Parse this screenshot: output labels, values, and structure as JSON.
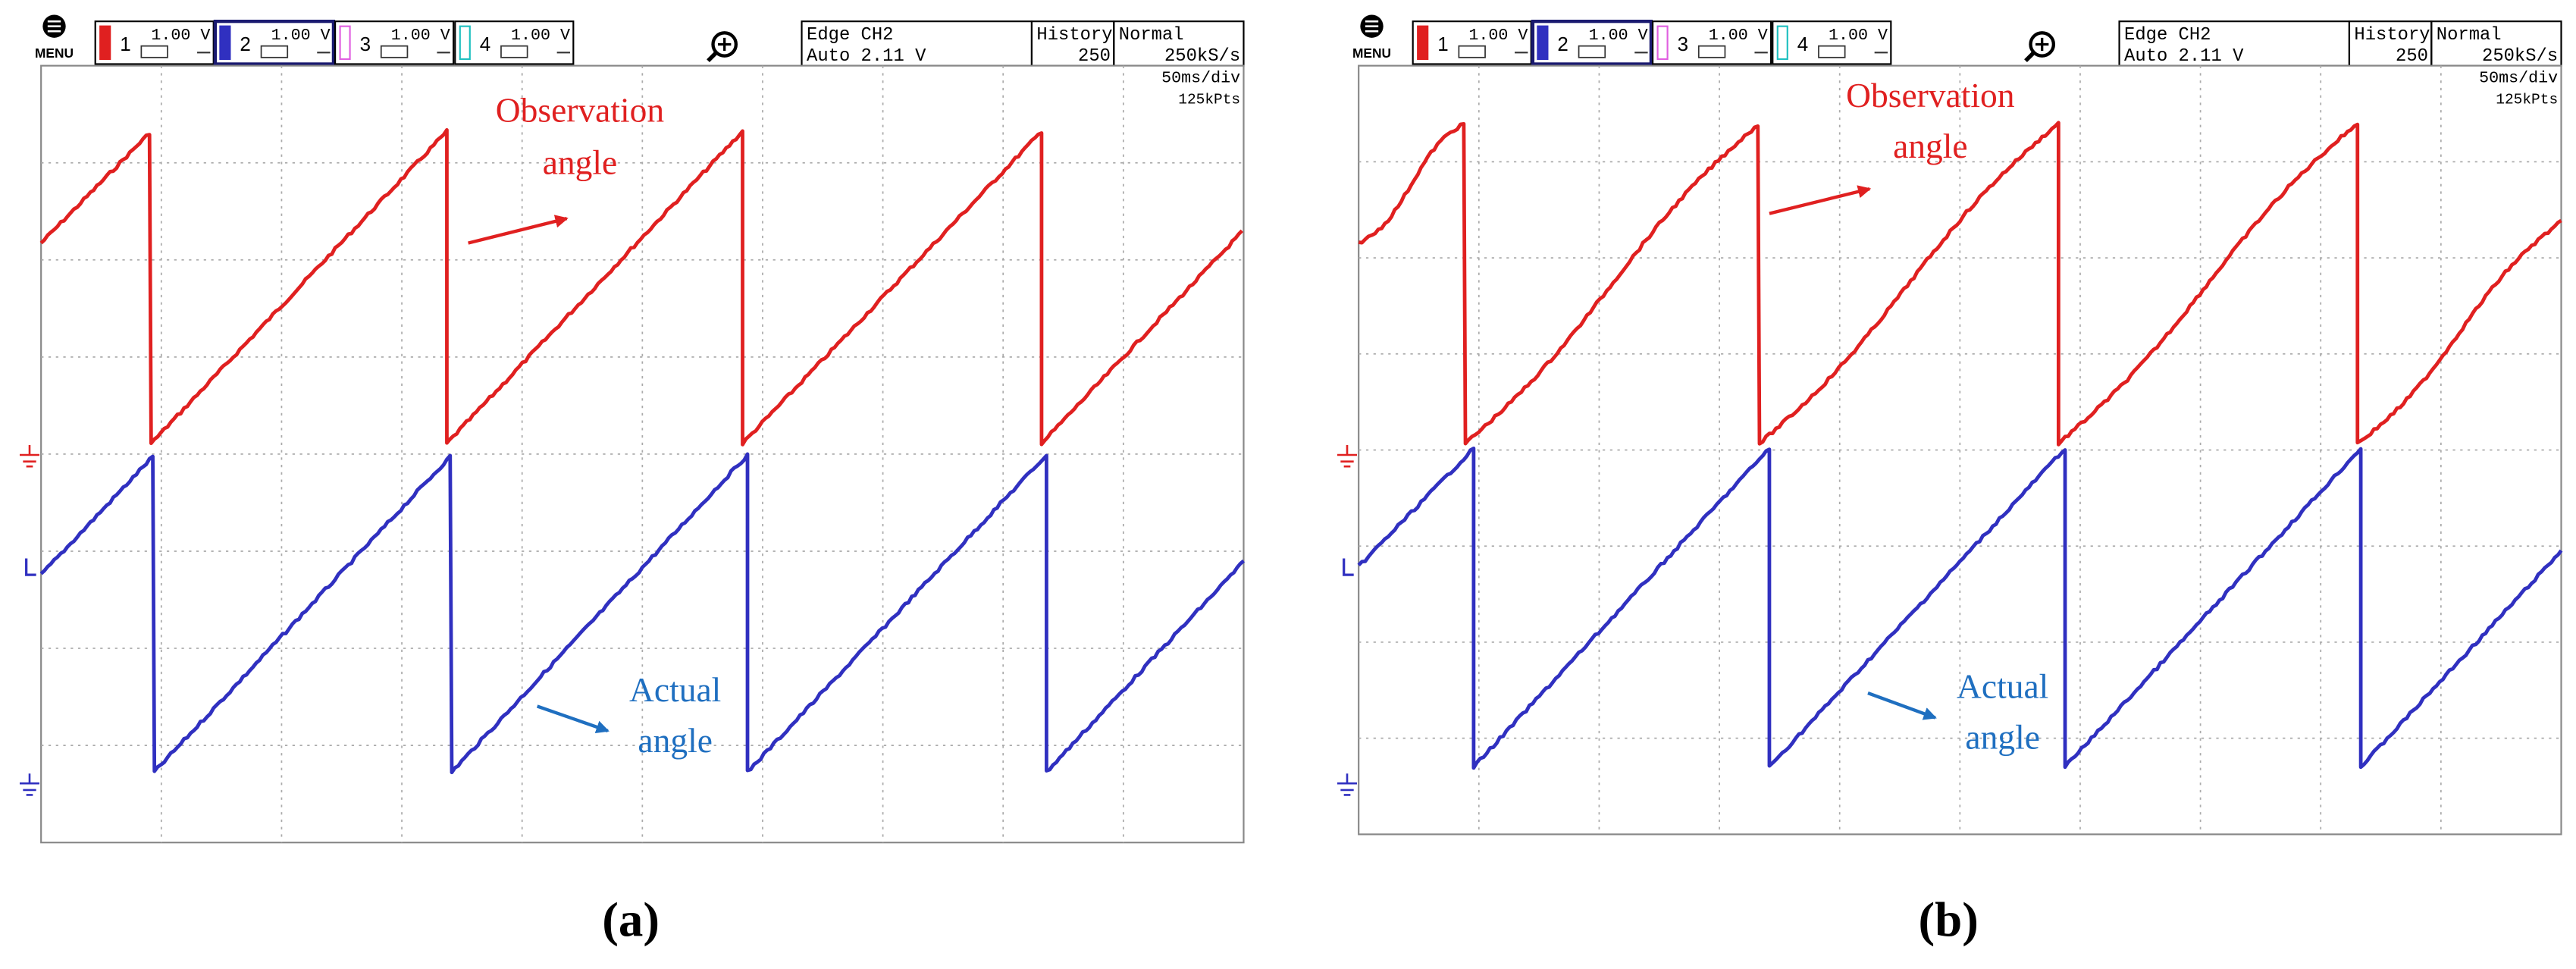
{
  "panels": [
    {
      "menu": "MENU",
      "channels": [
        {
          "number": "1",
          "scale": "1.00 V"
        },
        {
          "number": "2",
          "scale": "1.00 V"
        },
        {
          "number": "3",
          "scale": "1.00 V"
        },
        {
          "number": "4",
          "scale": "1.00 V"
        }
      ],
      "trigger": "Edge CH2",
      "trigger_level": "Auto 2.11 V",
      "history_label": "History",
      "history_value": "250",
      "mode": "Normal",
      "sample_rate": "250kS/s",
      "timebase": "50ms/div",
      "record_length": "125kPts",
      "observation": [
        "Observation",
        "angle"
      ],
      "actual": [
        "Actual",
        "angle"
      ],
      "caption": "(a)"
    },
    {
      "menu": "MENU",
      "channels": [
        {
          "number": "1",
          "scale": "1.00 V"
        },
        {
          "number": "2",
          "scale": "1.00 V"
        },
        {
          "number": "3",
          "scale": "1.00 V"
        },
        {
          "number": "4",
          "scale": "1.00 V"
        }
      ],
      "trigger": "Edge CH2",
      "trigger_level": "Auto 2.11 V",
      "history_label": "History",
      "history_value": "250",
      "mode": "Normal",
      "sample_rate": "250kS/s",
      "timebase": "50ms/div",
      "record_length": "125kPts",
      "observation": [
        "Observation",
        "angle"
      ],
      "actual": [
        "Actual",
        "angle"
      ],
      "caption": "(b)"
    }
  ]
}
